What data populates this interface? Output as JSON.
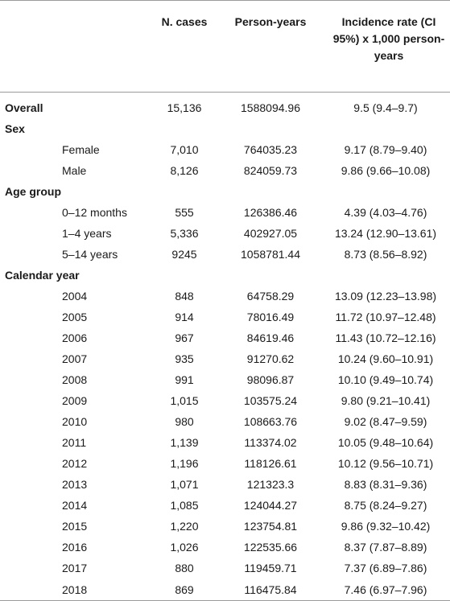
{
  "header": {
    "label": "",
    "cases": "N. cases",
    "person_years": "Person-years",
    "incidence": "Incidence rate (CI 95%) x 1,000 person-years"
  },
  "rows": [
    {
      "kind": "section",
      "label": "Overall",
      "cases": "15,136",
      "person_years": "1588094.96",
      "incidence": "9.5 (9.4–9.7)"
    },
    {
      "kind": "section",
      "label": "Sex",
      "cases": "",
      "person_years": "",
      "incidence": ""
    },
    {
      "kind": "sub",
      "label": "Female",
      "cases": "7,010",
      "person_years": "764035.23",
      "incidence": "9.17 (8.79–9.40)"
    },
    {
      "kind": "sub",
      "label": "Male",
      "cases": "8,126",
      "person_years": "824059.73",
      "incidence": "9.86 (9.66–10.08)"
    },
    {
      "kind": "section",
      "label": "Age group",
      "cases": "",
      "person_years": "",
      "incidence": ""
    },
    {
      "kind": "sub",
      "label": "0–12 months",
      "cases": "555",
      "person_years": "126386.46",
      "incidence": "4.39 (4.03–4.76)"
    },
    {
      "kind": "sub",
      "label": "1–4 years",
      "cases": "5,336",
      "person_years": "402927.05",
      "incidence": "13.24 (12.90–13.61)"
    },
    {
      "kind": "sub",
      "label": "5–14 years",
      "cases": "9245",
      "person_years": "1058781.44",
      "incidence": "8.73 (8.56–8.92)"
    },
    {
      "kind": "section",
      "label": "Calendar year",
      "cases": "",
      "person_years": "",
      "incidence": ""
    },
    {
      "kind": "sub",
      "label": "2004",
      "cases": "848",
      "person_years": "64758.29",
      "incidence": "13.09 (12.23–13.98)"
    },
    {
      "kind": "sub",
      "label": "2005",
      "cases": "914",
      "person_years": "78016.49",
      "incidence": "11.72 (10.97–12.48)"
    },
    {
      "kind": "sub",
      "label": "2006",
      "cases": "967",
      "person_years": "84619.46",
      "incidence": "11.43 (10.72–12.16)"
    },
    {
      "kind": "sub",
      "label": "2007",
      "cases": "935",
      "person_years": "91270.62",
      "incidence": "10.24 (9.60–10.91)"
    },
    {
      "kind": "sub",
      "label": "2008",
      "cases": "991",
      "person_years": "98096.87",
      "incidence": "10.10 (9.49–10.74)"
    },
    {
      "kind": "sub",
      "label": "2009",
      "cases": "1,015",
      "person_years": "103575.24",
      "incidence": "9.80 (9.21–10.41)"
    },
    {
      "kind": "sub",
      "label": "2010",
      "cases": "980",
      "person_years": "108663.76",
      "incidence": "9.02 (8.47–9.59)"
    },
    {
      "kind": "sub",
      "label": "2011",
      "cases": "1,139",
      "person_years": "113374.02",
      "incidence": "10.05 (9.48–10.64)"
    },
    {
      "kind": "sub",
      "label": "2012",
      "cases": "1,196",
      "person_years": "118126.61",
      "incidence": "10.12 (9.56–10.71)"
    },
    {
      "kind": "sub",
      "label": "2013",
      "cases": "1,071",
      "person_years": "121323.3",
      "incidence": "8.83 (8.31–9.36)"
    },
    {
      "kind": "sub",
      "label": "2014",
      "cases": "1,085",
      "person_years": "124044.27",
      "incidence": "8.75 (8.24–9.27)"
    },
    {
      "kind": "sub",
      "label": "2015",
      "cases": "1,220",
      "person_years": "123754.81",
      "incidence": "9.86 (9.32–10.42)"
    },
    {
      "kind": "sub",
      "label": "2016",
      "cases": "1,026",
      "person_years": "122535.66",
      "incidence": "8.37 (7.87–8.89)"
    },
    {
      "kind": "sub",
      "label": "2017",
      "cases": "880",
      "person_years": "119459.71",
      "incidence": "7.37 (6.89–7.86)"
    },
    {
      "kind": "sub",
      "label": "2018",
      "cases": "869",
      "person_years": "116475.84",
      "incidence": "7.46 (6.97–7.96)"
    }
  ]
}
